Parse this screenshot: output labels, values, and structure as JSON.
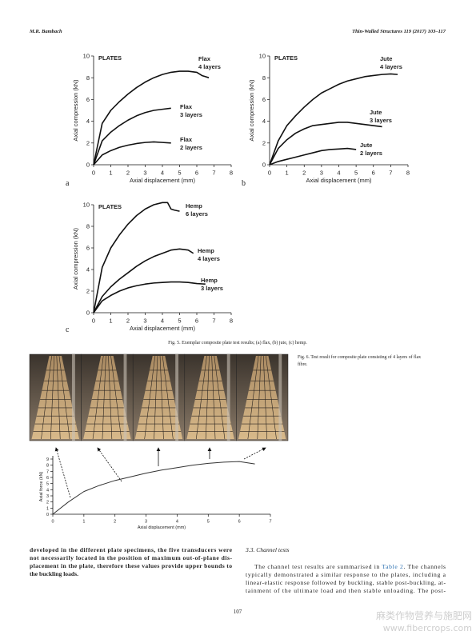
{
  "header": {
    "left": "M.R. Bambach",
    "right": "Thin-Walled Structures 119 (2017) 103–117"
  },
  "chart_data": [
    {
      "type": "line",
      "panel": "a",
      "annotation": "PLATES",
      "xlabel": "Axial displacement (mm)",
      "ylabel": "Axial compression (kN)",
      "xlim": [
        0,
        8
      ],
      "ylim": [
        0,
        10
      ],
      "xticks": [
        0,
        1,
        2,
        3,
        4,
        5,
        6,
        7,
        8
      ],
      "yticks": [
        0,
        2,
        4,
        6,
        8,
        10
      ],
      "series": [
        {
          "name": "Flax",
          "layers": "4 layers",
          "color": "#111111",
          "x": [
            0,
            0.5,
            1,
            1.5,
            2,
            2.5,
            3,
            3.5,
            4,
            4.5,
            5,
            5.5,
            6,
            6.3,
            6.7
          ],
          "values": [
            0,
            3.8,
            5,
            5.8,
            6.5,
            7.1,
            7.6,
            8,
            8.3,
            8.5,
            8.6,
            8.6,
            8.5,
            8.2,
            8
          ]
        },
        {
          "name": "Flax",
          "layers": "3 layers",
          "color": "#111111",
          "x": [
            0,
            0.5,
            1,
            1.5,
            2,
            2.5,
            3,
            3.5,
            4,
            4.5
          ],
          "values": [
            0,
            2.2,
            3,
            3.6,
            4.1,
            4.5,
            4.8,
            5,
            5.1,
            5.2
          ]
        },
        {
          "name": "Flax",
          "layers": "2 layers",
          "color": "#111111",
          "x": [
            0,
            0.5,
            1,
            1.5,
            2,
            2.5,
            3,
            3.5,
            4,
            4.5
          ],
          "values": [
            0,
            0.9,
            1.3,
            1.6,
            1.8,
            1.95,
            2.05,
            2.1,
            2.05,
            2
          ]
        }
      ]
    },
    {
      "type": "line",
      "panel": "b",
      "annotation": "PLATES",
      "xlabel": "Axial displacement (mm)",
      "ylabel": "Axial compression (kN)",
      "xlim": [
        0,
        8
      ],
      "ylim": [
        0,
        10
      ],
      "xticks": [
        0,
        1,
        2,
        3,
        4,
        5,
        6,
        7,
        8
      ],
      "yticks": [
        0,
        2,
        4,
        6,
        8,
        10
      ],
      "series": [
        {
          "name": "Jute",
          "layers": "4 layers",
          "color": "#111111",
          "x": [
            0,
            0.5,
            1,
            1.5,
            2,
            2.5,
            3,
            3.5,
            4,
            4.5,
            5,
            5.5,
            6,
            6.5,
            7,
            7.4
          ],
          "values": [
            0,
            2.2,
            3.6,
            4.5,
            5.3,
            6,
            6.6,
            7,
            7.4,
            7.7,
            7.9,
            8.1,
            8.2,
            8.3,
            8.35,
            8.3
          ]
        },
        {
          "name": "Jute",
          "layers": "3 layers",
          "color": "#111111",
          "x": [
            0,
            0.5,
            1,
            1.5,
            2,
            2.5,
            3,
            3.5,
            4,
            4.5,
            5,
            5.5,
            6,
            6.5
          ],
          "values": [
            0,
            1.5,
            2.3,
            2.9,
            3.3,
            3.6,
            3.7,
            3.8,
            3.9,
            3.9,
            3.8,
            3.7,
            3.6,
            3.5
          ]
        },
        {
          "name": "Jute",
          "layers": "2 layers",
          "color": "#111111",
          "x": [
            0,
            0.5,
            1,
            1.5,
            2,
            2.5,
            3,
            3.5,
            4,
            4.5,
            5
          ],
          "values": [
            0,
            0.3,
            0.5,
            0.7,
            0.9,
            1.1,
            1.3,
            1.4,
            1.45,
            1.5,
            1.4
          ]
        }
      ]
    },
    {
      "type": "line",
      "panel": "c",
      "annotation": "PLATES",
      "xlabel": "Axial displacement (mm)",
      "ylabel": "Axial compression (kN)",
      "xlim": [
        0,
        8
      ],
      "ylim": [
        0,
        10
      ],
      "xticks": [
        0,
        1,
        2,
        3,
        4,
        5,
        6,
        7,
        8
      ],
      "yticks": [
        0,
        2,
        4,
        6,
        8,
        10
      ],
      "series": [
        {
          "name": "Hemp",
          "layers": "6 layers",
          "color": "#111111",
          "x": [
            0,
            0.5,
            1,
            1.5,
            2,
            2.5,
            3,
            3.5,
            4,
            4.3,
            4.5,
            4.7,
            5
          ],
          "values": [
            0,
            4.2,
            6,
            7.2,
            8.2,
            9,
            9.6,
            10,
            10.2,
            10.2,
            9.6,
            9.5,
            9.4
          ]
        },
        {
          "name": "Hemp",
          "layers": "4 layers",
          "color": "#111111",
          "x": [
            0,
            0.5,
            1,
            1.5,
            2,
            2.5,
            3,
            3.5,
            4,
            4.5,
            5,
            5.5,
            5.8
          ],
          "values": [
            0,
            1.5,
            2.4,
            3.1,
            3.7,
            4.3,
            4.8,
            5.2,
            5.5,
            5.8,
            5.9,
            5.8,
            5.5
          ]
        },
        {
          "name": "Hemp",
          "layers": "3 layers",
          "color": "#111111",
          "x": [
            0,
            0.5,
            1,
            1.5,
            2,
            2.5,
            3,
            3.5,
            4,
            4.5,
            5,
            5.5,
            6,
            6.5
          ],
          "values": [
            0,
            1.1,
            1.6,
            2,
            2.3,
            2.5,
            2.65,
            2.75,
            2.8,
            2.85,
            2.85,
            2.8,
            2.7,
            2.65
          ]
        }
      ]
    },
    {
      "type": "line",
      "xlabel": "Axial displacement (mm)",
      "ylabel": "Axial force (kN)",
      "xlim": [
        0,
        7
      ],
      "ylim": [
        0,
        9
      ],
      "xticks": [
        0,
        1,
        2,
        3,
        4,
        5,
        6,
        7
      ],
      "yticks": [
        0,
        1,
        2,
        3,
        4,
        5,
        6,
        7,
        8,
        9
      ],
      "series": [
        {
          "color": "#333333",
          "x": [
            0,
            0.5,
            1,
            1.5,
            2,
            2.5,
            3,
            3.5,
            4,
            4.5,
            5,
            5.5,
            6,
            6.5
          ],
          "values": [
            0,
            2,
            3.7,
            4.7,
            5.5,
            6.1,
            6.7,
            7.2,
            7.6,
            8,
            8.3,
            8.5,
            8.6,
            8.2
          ]
        }
      ]
    }
  ],
  "captions": {
    "fig5": "Fig. 5. Exemplar composite plate test results; (a) flax, (b) jute, (c) hemp.",
    "fig6": [
      "Fig. 6. Test result for composite plate consisting of 4 layers of flax",
      "fibre."
    ]
  },
  "left_column": [
    "developed in the different plate specimens, the five transducers were",
    "not necessarily located in the position of maximum out-of-plane dis-",
    "placement in the plate, therefore these values provide upper bounds to",
    "the buckling loads."
  ],
  "right_column": {
    "heading": "3.3.  Channel tests",
    "first_line": [
      "The channel test results are summarised in ",
      "Table 2",
      ". The channels"
    ],
    "lines": [
      "typically demonstrated a similar response to the plates, including a",
      "linear-elastic response followed by buckling, stable post-buckling, at-",
      "tainment of the ultimate load and then stable unloading. The post-"
    ]
  },
  "page_number": "107",
  "watermark": [
    "麻类作物营养与施肥网",
    "www.fibercrops.com"
  ]
}
